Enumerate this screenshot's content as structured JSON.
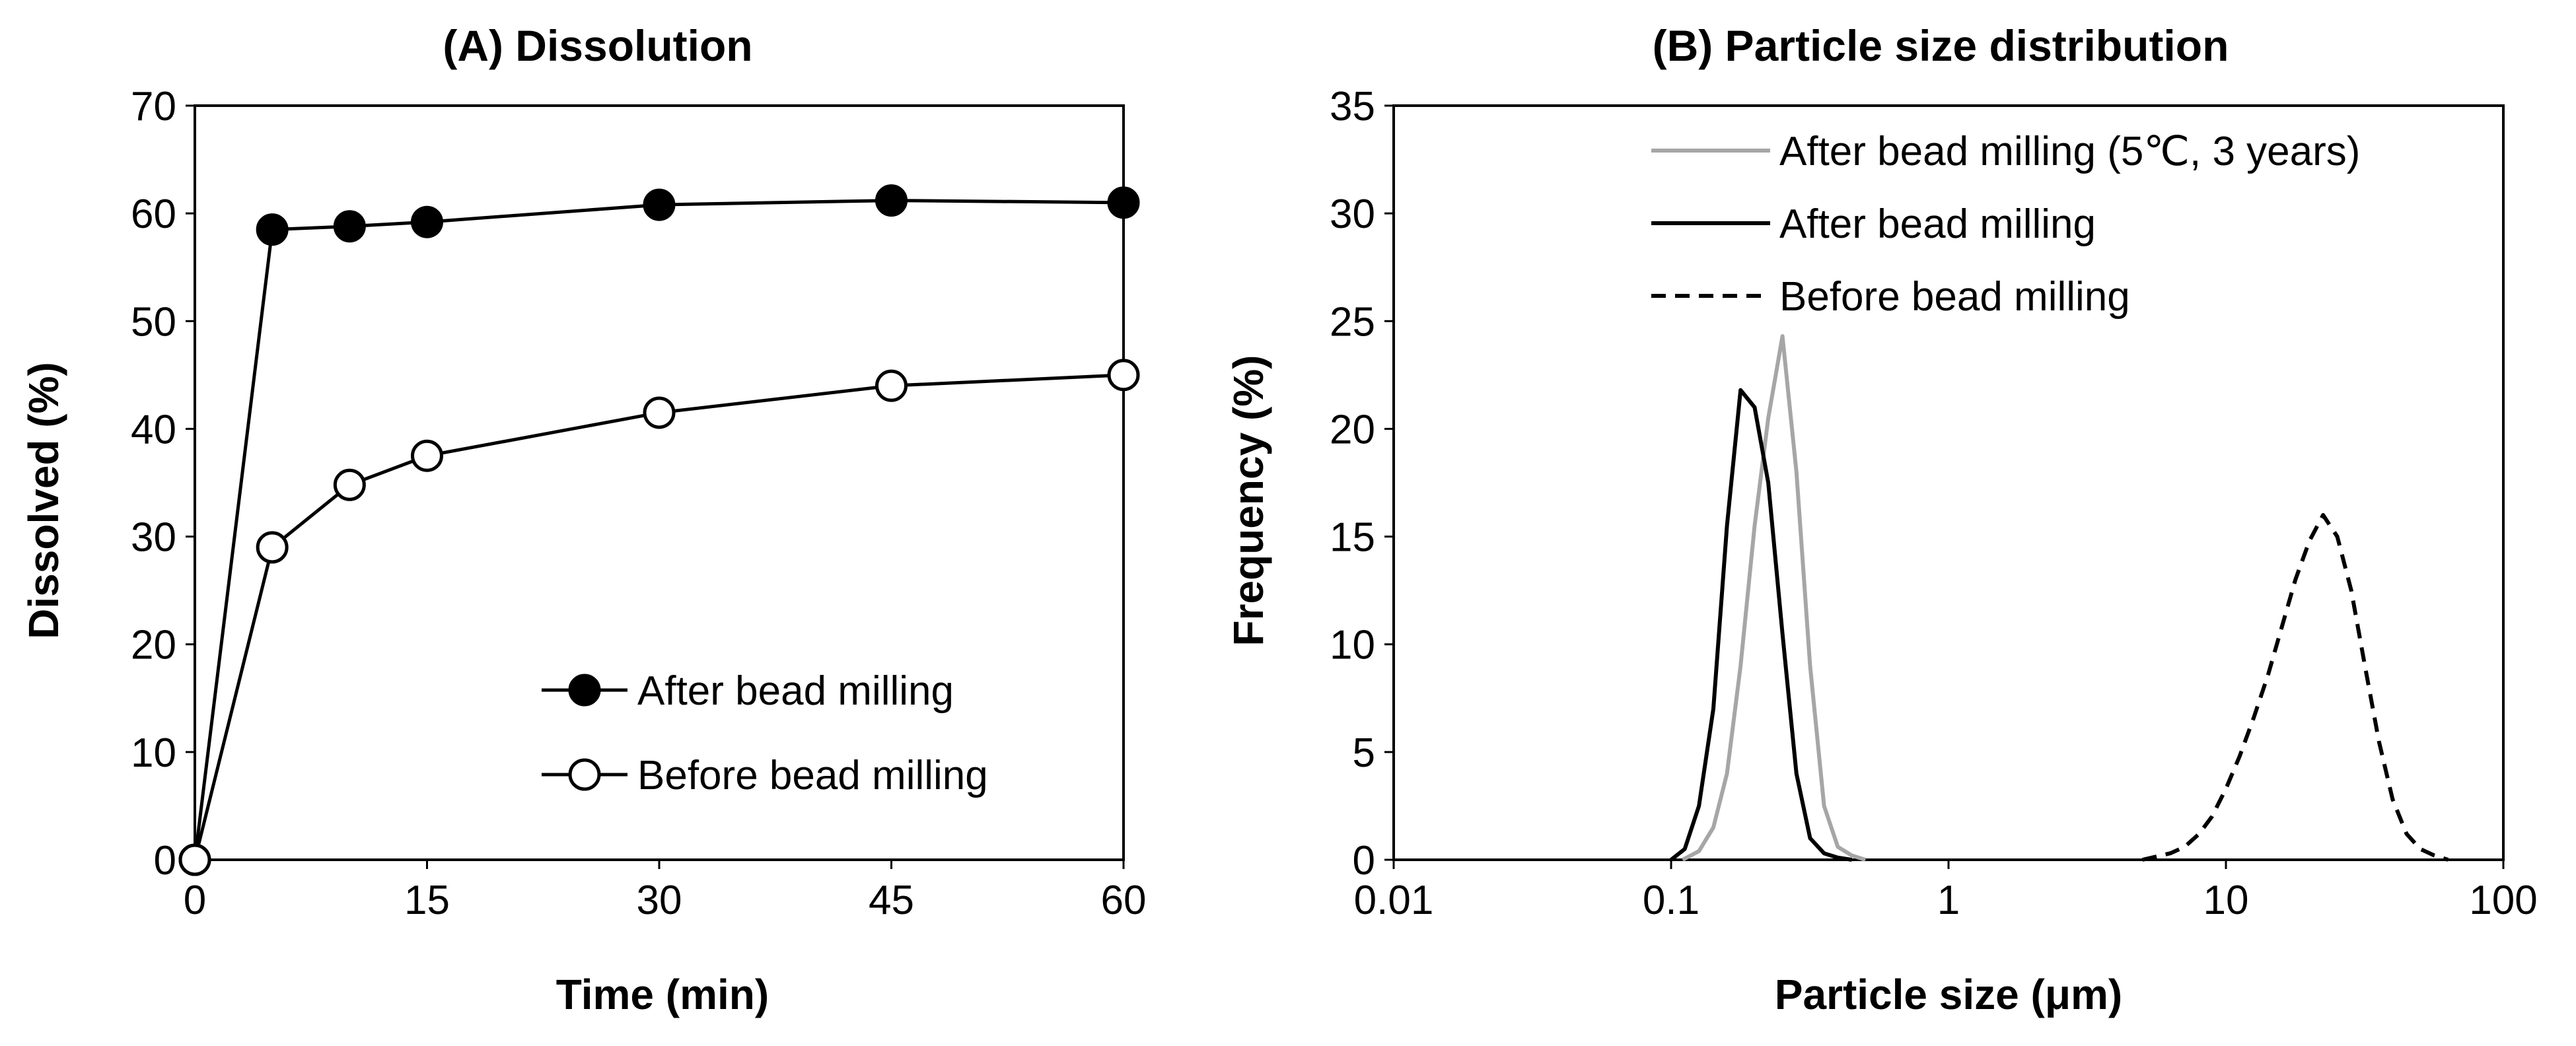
{
  "chart_data": [
    {
      "type": "line",
      "title": "(A)  Dissolution",
      "xlabel": "Time (min)",
      "ylabel": "Dissolved (%)",
      "xlim": [
        0,
        60
      ],
      "ylim": [
        0,
        70
      ],
      "xticks": [
        0,
        15,
        30,
        45,
        60
      ],
      "yticks": [
        0,
        10,
        20,
        30,
        40,
        50,
        60,
        70
      ],
      "grid": false,
      "legend_position": "bottom-right",
      "series": [
        {
          "name": "After bead milling",
          "marker": "filled-circle",
          "color": "#000000",
          "x": [
            0,
            5,
            10,
            15,
            30,
            45,
            60
          ],
          "y": [
            0,
            58.5,
            58.8,
            59.2,
            60.8,
            61.2,
            61.0
          ]
        },
        {
          "name": "Before bead milling",
          "marker": "open-circle",
          "color": "#000000",
          "x": [
            0,
            5,
            10,
            15,
            30,
            45,
            60
          ],
          "y": [
            0,
            29.0,
            34.8,
            37.5,
            41.5,
            44.0,
            45.0
          ]
        }
      ]
    },
    {
      "type": "line",
      "title": "(B)  Particle size distribution",
      "xlabel": "Particle size (μm)",
      "ylabel": "Frequency (%)",
      "xscale": "log",
      "xlim": [
        0.01,
        100
      ],
      "ylim": [
        0,
        35
      ],
      "xticks": [
        0.01,
        0.1,
        1,
        10,
        100
      ],
      "xtick_labels": [
        "0.01",
        "0.1",
        "1",
        "10",
        "100"
      ],
      "yticks": [
        0,
        5,
        10,
        15,
        20,
        25,
        30,
        35
      ],
      "grid": false,
      "legend_position": "top-right",
      "series": [
        {
          "name": "After bead milling  (5℃, 3 years)",
          "style": "solid",
          "color": "#a6a6a6",
          "x": [
            0.11,
            0.126,
            0.142,
            0.159,
            0.178,
            0.2,
            0.224,
            0.252,
            0.283,
            0.317,
            0.356,
            0.399,
            0.448,
            0.502
          ],
          "y": [
            0,
            0.4,
            1.5,
            4.0,
            9.0,
            15.5,
            20.5,
            24.3,
            18.0,
            9.0,
            2.5,
            0.6,
            0.2,
            0
          ]
        },
        {
          "name": "After bead milling",
          "style": "solid",
          "color": "#000000",
          "x": [
            0.1,
            0.112,
            0.126,
            0.142,
            0.159,
            0.178,
            0.2,
            0.224,
            0.252,
            0.283,
            0.317,
            0.356,
            0.399,
            0.448
          ],
          "y": [
            0,
            0.5,
            2.5,
            7.0,
            15.5,
            21.8,
            21.0,
            17.5,
            10.5,
            4.0,
            1.0,
            0.3,
            0.1,
            0
          ]
        },
        {
          "name": "Before bead milling",
          "style": "dashed",
          "color": "#000000",
          "x": [
            5.0,
            6.3,
            7.1,
            8.0,
            8.9,
            10.0,
            11.2,
            12.6,
            14.2,
            15.9,
            17.8,
            20.0,
            22.4,
            25.2,
            28.3,
            31.7,
            35.6,
            39.9,
            44.8,
            50.2,
            56.4,
            63.2
          ],
          "y": [
            0,
            0.3,
            0.6,
            1.2,
            2.0,
            3.3,
            4.8,
            6.6,
            8.6,
            10.8,
            13.0,
            14.8,
            16.0,
            15.0,
            12.5,
            9.0,
            5.5,
            2.8,
            1.2,
            0.5,
            0.2,
            0
          ]
        }
      ]
    }
  ]
}
